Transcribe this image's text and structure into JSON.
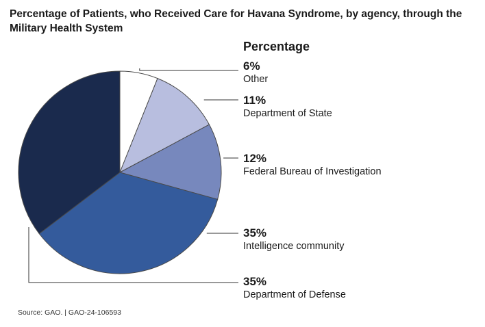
{
  "chart_data": {
    "type": "pie",
    "title": "Percentage of Patients, who Received Care for Havana Syndrome, by agency, through the Military Health System",
    "legend_title": "Percentage",
    "slices": [
      {
        "label": "Other",
        "value": 6,
        "value_label": "6%",
        "color": "#ffffff"
      },
      {
        "label": "Department of State",
        "value": 11,
        "value_label": "11%",
        "color": "#b8bedf"
      },
      {
        "label": "Federal Bureau of Investigation",
        "value": 12,
        "value_label": "12%",
        "color": "#7788bd"
      },
      {
        "label": "Intelligence community",
        "value": 35,
        "value_label": "35%",
        "color": "#345b9c"
      },
      {
        "label": "Department of Defense",
        "value": 35,
        "value_label": "35%",
        "color": "#1a2a4d"
      }
    ],
    "legend_placement": "right",
    "source": "Source: GAO.  |  GAO-24-106593"
  }
}
